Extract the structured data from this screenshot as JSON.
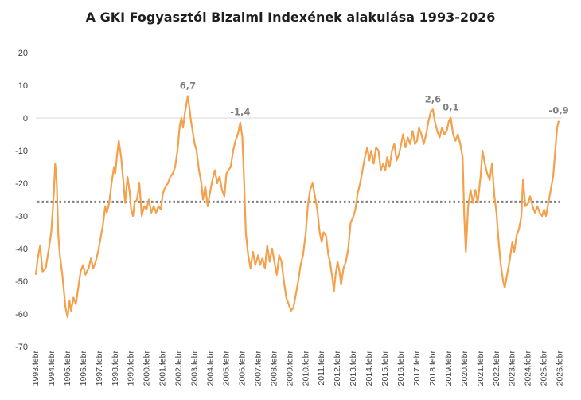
{
  "title": "A GKI Fogyasztói Bizalmi Indexének alakulása 1993-2026",
  "colors": {
    "line": "#F5A04A",
    "average": "#7F7F7F",
    "axis": "#D9D9D9",
    "text": "#404040",
    "label": "#7F7F7F"
  },
  "chart_data": {
    "type": "line",
    "title": "A GKI Fogyasztói Bizalmi Indexének alakulása 1993-2026",
    "xlabel": "",
    "ylabel": "",
    "ylim": [
      -70,
      20
    ],
    "yticks": [
      20,
      10,
      0,
      -10,
      -20,
      -30,
      -40,
      -50,
      -60,
      -70
    ],
    "xlim": [
      1993.08,
      2026.2
    ],
    "x_tick_labels": [
      "1993.febr",
      "1994.febr",
      "1995.febr",
      "1996.febr",
      "1997.febr",
      "1998.febr",
      "1999.febr",
      "2000.febr",
      "2001.febr",
      "2002.febr",
      "2003.febr",
      "2004.febr",
      "2005.febr",
      "2006.febr",
      "2007.febr",
      "2008.febr",
      "2009.febr",
      "2010.febr",
      "2011.febr",
      "2012.febr",
      "2013.febr",
      "2014.febr",
      "2015.febr",
      "2016.febr",
      "2017.febr",
      "2018.febr",
      "2019.febr",
      "2020.febr",
      "2021.febr",
      "2022.febr",
      "2023.febr",
      "2024.febr",
      "2025.febr",
      "2026.febr"
    ],
    "average_line": -25.7,
    "grid": false,
    "series": [
      {
        "values": [
          [
            1993.08,
            -48
          ],
          [
            1993.2,
            -43
          ],
          [
            1993.35,
            -39
          ],
          [
            1993.5,
            -47
          ],
          [
            1993.7,
            -46
          ],
          [
            1993.9,
            -40
          ],
          [
            1994.05,
            -35
          ],
          [
            1994.2,
            -24
          ],
          [
            1994.3,
            -14
          ],
          [
            1994.4,
            -20
          ],
          [
            1994.5,
            -36
          ],
          [
            1994.6,
            -42
          ],
          [
            1994.75,
            -48
          ],
          [
            1994.85,
            -53
          ],
          [
            1994.95,
            -58
          ],
          [
            1995.08,
            -61
          ],
          [
            1995.2,
            -56
          ],
          [
            1995.3,
            -59
          ],
          [
            1995.45,
            -55
          ],
          [
            1995.6,
            -57
          ],
          [
            1995.75,
            -52
          ],
          [
            1995.9,
            -47
          ],
          [
            1996.05,
            -45
          ],
          [
            1996.2,
            -48
          ],
          [
            1996.4,
            -46
          ],
          [
            1996.55,
            -43
          ],
          [
            1996.7,
            -46
          ],
          [
            1996.85,
            -44
          ],
          [
            1997.0,
            -41
          ],
          [
            1997.15,
            -37
          ],
          [
            1997.3,
            -33
          ],
          [
            1997.45,
            -27
          ],
          [
            1997.55,
            -29
          ],
          [
            1997.7,
            -26
          ],
          [
            1997.85,
            -20
          ],
          [
            1998.0,
            -15
          ],
          [
            1998.08,
            -17
          ],
          [
            1998.2,
            -11
          ],
          [
            1998.3,
            -7
          ],
          [
            1998.45,
            -12
          ],
          [
            1998.6,
            -20
          ],
          [
            1998.7,
            -26
          ],
          [
            1998.85,
            -18
          ],
          [
            1999.0,
            -23
          ],
          [
            1999.08,
            -28
          ],
          [
            1999.2,
            -30
          ],
          [
            1999.3,
            -26
          ],
          [
            1999.45,
            -25
          ],
          [
            1999.6,
            -20
          ],
          [
            1999.75,
            -30
          ],
          [
            1999.9,
            -27
          ],
          [
            2000.05,
            -28
          ],
          [
            2000.2,
            -25
          ],
          [
            2000.35,
            -29
          ],
          [
            2000.5,
            -27
          ],
          [
            2000.65,
            -29
          ],
          [
            2000.8,
            -27
          ],
          [
            2000.95,
            -28
          ],
          [
            2001.08,
            -23
          ],
          [
            2001.25,
            -21
          ],
          [
            2001.4,
            -20
          ],
          [
            2001.55,
            -18
          ],
          [
            2001.7,
            -17
          ],
          [
            2001.85,
            -15
          ],
          [
            2002.0,
            -10
          ],
          [
            2002.15,
            -2
          ],
          [
            2002.25,
            0
          ],
          [
            2002.35,
            -3
          ],
          [
            2002.45,
            1
          ],
          [
            2002.55,
            4
          ],
          [
            2002.65,
            6.7
          ],
          [
            2002.75,
            3
          ],
          [
            2002.85,
            -1
          ],
          [
            2002.95,
            -4
          ],
          [
            2003.08,
            -8
          ],
          [
            2003.2,
            -10
          ],
          [
            2003.35,
            -16
          ],
          [
            2003.5,
            -20
          ],
          [
            2003.6,
            -25
          ],
          [
            2003.75,
            -21
          ],
          [
            2003.9,
            -27
          ],
          [
            2004.08,
            -22
          ],
          [
            2004.2,
            -19
          ],
          [
            2004.35,
            -16
          ],
          [
            2004.5,
            -20
          ],
          [
            2004.65,
            -18
          ],
          [
            2004.8,
            -22
          ],
          [
            2004.95,
            -24
          ],
          [
            2005.08,
            -17
          ],
          [
            2005.2,
            -16
          ],
          [
            2005.35,
            -15
          ],
          [
            2005.5,
            -10
          ],
          [
            2005.65,
            -7
          ],
          [
            2005.8,
            -5
          ],
          [
            2005.95,
            -1.4
          ],
          [
            2006.08,
            -6
          ],
          [
            2006.2,
            -20
          ],
          [
            2006.3,
            -35
          ],
          [
            2006.45,
            -42
          ],
          [
            2006.6,
            -46
          ],
          [
            2006.75,
            -41
          ],
          [
            2006.9,
            -45
          ],
          [
            2007.08,
            -42
          ],
          [
            2007.2,
            -45
          ],
          [
            2007.35,
            -43
          ],
          [
            2007.5,
            -46
          ],
          [
            2007.65,
            -39
          ],
          [
            2007.8,
            -44
          ],
          [
            2007.95,
            -40
          ],
          [
            2008.1,
            -44
          ],
          [
            2008.25,
            -48
          ],
          [
            2008.4,
            -42
          ],
          [
            2008.55,
            -44
          ],
          [
            2008.7,
            -50
          ],
          [
            2008.85,
            -55
          ],
          [
            2009.0,
            -57
          ],
          [
            2009.15,
            -59
          ],
          [
            2009.3,
            -58
          ],
          [
            2009.45,
            -54
          ],
          [
            2009.6,
            -50
          ],
          [
            2009.75,
            -45
          ],
          [
            2009.9,
            -42
          ],
          [
            2010.08,
            -35
          ],
          [
            2010.2,
            -27
          ],
          [
            2010.35,
            -22
          ],
          [
            2010.5,
            -20
          ],
          [
            2010.65,
            -24
          ],
          [
            2010.8,
            -28
          ],
          [
            2010.95,
            -35
          ],
          [
            2011.08,
            -38
          ],
          [
            2011.2,
            -35
          ],
          [
            2011.35,
            -36
          ],
          [
            2011.5,
            -42
          ],
          [
            2011.6,
            -44
          ],
          [
            2011.75,
            -49
          ],
          [
            2011.85,
            -53
          ],
          [
            2011.95,
            -48
          ],
          [
            2012.08,
            -44
          ],
          [
            2012.2,
            -47
          ],
          [
            2012.3,
            -51
          ],
          [
            2012.45,
            -46
          ],
          [
            2012.6,
            -44
          ],
          [
            2012.75,
            -40
          ],
          [
            2012.9,
            -32
          ],
          [
            2013.08,
            -30
          ],
          [
            2013.2,
            -28
          ],
          [
            2013.35,
            -23
          ],
          [
            2013.5,
            -20
          ],
          [
            2013.65,
            -16
          ],
          [
            2013.8,
            -12
          ],
          [
            2013.95,
            -9
          ],
          [
            2014.08,
            -13
          ],
          [
            2014.2,
            -10
          ],
          [
            2014.35,
            -14
          ],
          [
            2014.5,
            -9
          ],
          [
            2014.65,
            -10
          ],
          [
            2014.8,
            -16
          ],
          [
            2014.95,
            -14
          ],
          [
            2015.08,
            -16
          ],
          [
            2015.2,
            -12
          ],
          [
            2015.35,
            -15
          ],
          [
            2015.5,
            -10
          ],
          [
            2015.65,
            -8
          ],
          [
            2015.8,
            -13
          ],
          [
            2015.95,
            -11
          ],
          [
            2016.08,
            -8
          ],
          [
            2016.2,
            -5
          ],
          [
            2016.35,
            -9
          ],
          [
            2016.5,
            -6
          ],
          [
            2016.65,
            -8
          ],
          [
            2016.8,
            -4
          ],
          [
            2016.95,
            -8
          ],
          [
            2017.08,
            -7
          ],
          [
            2017.2,
            -3
          ],
          [
            2017.35,
            -5
          ],
          [
            2017.5,
            -8
          ],
          [
            2017.65,
            -5
          ],
          [
            2017.8,
            -1
          ],
          [
            2017.95,
            2
          ],
          [
            2018.08,
            2.6
          ],
          [
            2018.2,
            -1
          ],
          [
            2018.35,
            -4
          ],
          [
            2018.5,
            -6
          ],
          [
            2018.65,
            -3
          ],
          [
            2018.8,
            -5
          ],
          [
            2018.95,
            -4
          ],
          [
            2019.08,
            -1
          ],
          [
            2019.2,
            0.1
          ],
          [
            2019.35,
            -5
          ],
          [
            2019.5,
            -7
          ],
          [
            2019.65,
            -5
          ],
          [
            2019.8,
            -8
          ],
          [
            2019.95,
            -12
          ],
          [
            2020.05,
            -30
          ],
          [
            2020.15,
            -41
          ],
          [
            2020.3,
            -27
          ],
          [
            2020.45,
            -22
          ],
          [
            2020.6,
            -26
          ],
          [
            2020.75,
            -22
          ],
          [
            2020.9,
            -26
          ],
          [
            2021.08,
            -18
          ],
          [
            2021.2,
            -10
          ],
          [
            2021.35,
            -14
          ],
          [
            2021.5,
            -17
          ],
          [
            2021.65,
            -19
          ],
          [
            2021.8,
            -14
          ],
          [
            2021.95,
            -24
          ],
          [
            2022.08,
            -29
          ],
          [
            2022.2,
            -37
          ],
          [
            2022.35,
            -45
          ],
          [
            2022.5,
            -50
          ],
          [
            2022.6,
            -52
          ],
          [
            2022.75,
            -48
          ],
          [
            2022.9,
            -44
          ],
          [
            2023.08,
            -38
          ],
          [
            2023.2,
            -41
          ],
          [
            2023.35,
            -36
          ],
          [
            2023.5,
            -34
          ],
          [
            2023.65,
            -30
          ],
          [
            2023.75,
            -19
          ],
          [
            2023.9,
            -27
          ],
          [
            2024.08,
            -26
          ],
          [
            2024.2,
            -24
          ],
          [
            2024.35,
            -27
          ],
          [
            2024.5,
            -29
          ],
          [
            2024.65,
            -27
          ],
          [
            2024.8,
            -29
          ],
          [
            2024.95,
            -30
          ],
          [
            2025.08,
            -28
          ],
          [
            2025.2,
            -30
          ],
          [
            2025.35,
            -26
          ],
          [
            2025.5,
            -22
          ],
          [
            2025.65,
            -18
          ],
          [
            2025.8,
            -9
          ],
          [
            2025.9,
            -3
          ],
          [
            2026.0,
            -0.9
          ]
        ]
      }
    ],
    "data_labels": [
      {
        "text": "6,7",
        "x": 2002.65,
        "y": 6.7
      },
      {
        "text": "-1,4",
        "x": 2005.95,
        "y": -1.4
      },
      {
        "text": "2,6",
        "x": 2018.08,
        "y": 2.6
      },
      {
        "text": "0,1",
        "x": 2019.2,
        "y": 0.1
      },
      {
        "text": "-0,9",
        "x": 2026.0,
        "y": -0.9
      }
    ]
  }
}
